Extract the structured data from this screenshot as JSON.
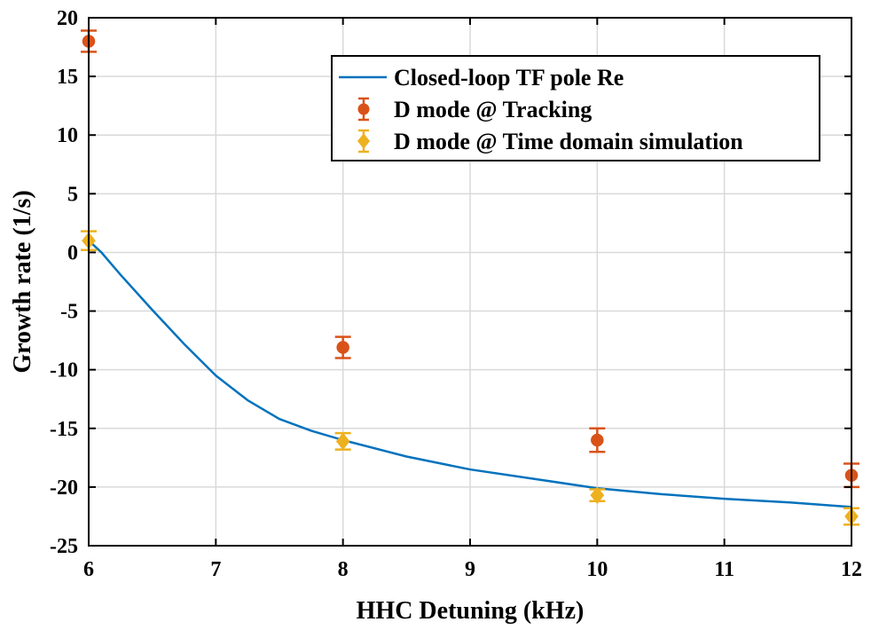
{
  "chart_data": {
    "type": "line",
    "xlabel": "HHC Detuning (kHz)",
    "ylabel": "Growth rate (1/s)",
    "xlim": [
      6,
      12
    ],
    "ylim": [
      -25,
      20
    ],
    "xticks": [
      6,
      7,
      8,
      9,
      10,
      11,
      12
    ],
    "yticks": [
      -25,
      -20,
      -15,
      -10,
      -5,
      0,
      5,
      10,
      15,
      20
    ],
    "grid": true,
    "legend_position": "top-right",
    "series": [
      {
        "name": "Closed-loop TF pole Re",
        "kind": "line",
        "color": "#0072BD",
        "x": [
          6.0,
          6.1,
          6.25,
          6.5,
          6.75,
          7.0,
          7.25,
          7.5,
          7.75,
          8.0,
          8.5,
          9.0,
          9.5,
          10.0,
          10.5,
          11.0,
          11.5,
          12.0
        ],
        "y": [
          1.0,
          0.0,
          -1.9,
          -4.9,
          -7.8,
          -10.5,
          -12.6,
          -14.2,
          -15.2,
          -16.0,
          -17.4,
          -18.5,
          -19.3,
          -20.1,
          -20.6,
          -21.0,
          -21.3,
          -21.7
        ]
      },
      {
        "name": "D mode @ Tracking",
        "kind": "errorbar",
        "marker": "circle",
        "color": "#D95319",
        "x": [
          6,
          8,
          10,
          12
        ],
        "y": [
          18.0,
          -8.1,
          -16.0,
          -19.0
        ],
        "err": [
          0.9,
          0.9,
          1.0,
          1.0
        ]
      },
      {
        "name": "D mode @ Time domain simulation",
        "kind": "errorbar",
        "marker": "diamond",
        "color": "#EDB120",
        "x": [
          6,
          8,
          10,
          12
        ],
        "y": [
          1.0,
          -16.1,
          -20.7,
          -22.5
        ],
        "err": [
          0.8,
          0.7,
          0.5,
          0.7
        ]
      }
    ]
  }
}
